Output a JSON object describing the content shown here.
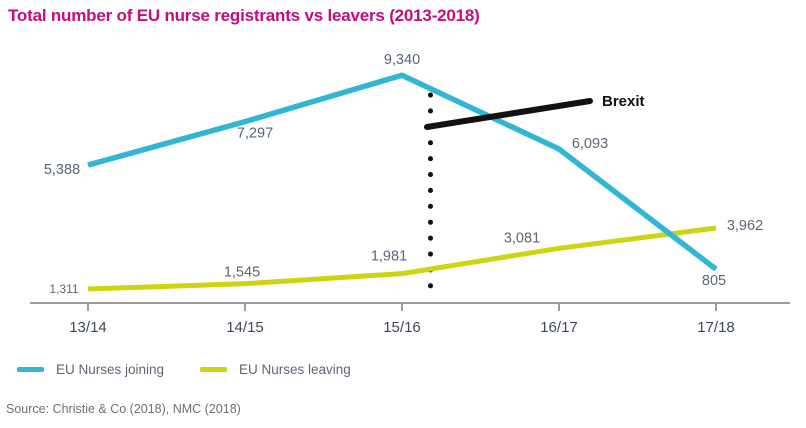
{
  "title": "Total number of EU nurse registrants vs leavers (2013-2018)",
  "source": "Source: Christie & Co (2018), NMC (2018)",
  "annotation": {
    "label": "Brexit"
  },
  "colors": {
    "title": "#c30d7e",
    "joining": "#31b7d3",
    "leaving": "#cdd412",
    "annotation": "#111111",
    "axis": "#9c9c9c",
    "data_label": "#5b6575",
    "tick_label": "#3f4857",
    "source": "#6f7072"
  },
  "chart_data": {
    "type": "line",
    "categories": [
      "13/14",
      "14/15",
      "15/16",
      "16/17",
      "17/18"
    ],
    "series": [
      {
        "name": "EU Nurses joining",
        "color": "#31b7d3",
        "values": [
          5388,
          7297,
          9340,
          6093,
          805
        ],
        "labels": [
          "5,388",
          "7,297",
          "9,340",
          "6,093",
          "805"
        ]
      },
      {
        "name": "EU Nurses leaving",
        "color": "#cdd412",
        "values": [
          1311,
          1545,
          1981,
          3081,
          3962
        ],
        "labels": [
          "1,311",
          "1,545",
          "1,981",
          "3,081",
          "3,962"
        ]
      }
    ],
    "title": "Total number of EU nurse registrants vs leavers (2013-2018)",
    "xlabel": "",
    "ylabel": "",
    "grid": false,
    "legend_position": "bottom-left",
    "annotations": [
      {
        "type": "vline-dotted",
        "between": [
          "15/16",
          "16/17"
        ]
      },
      {
        "type": "callout-line",
        "label": "Brexit"
      }
    ]
  }
}
